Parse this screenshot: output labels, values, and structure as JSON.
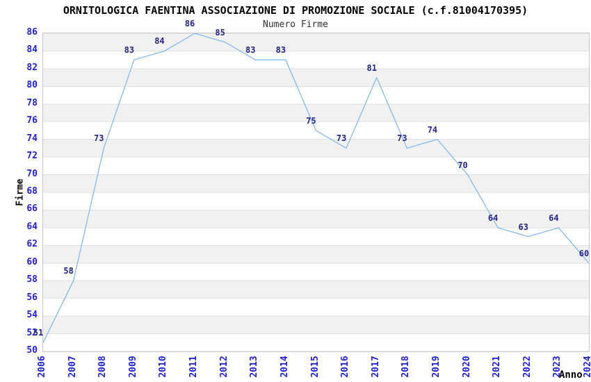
{
  "chart_data": {
    "type": "line",
    "title": "ORNITOLOGICA FAENTINA ASSOCIAZIONE DI PROMOZIONE SOCIALE (c.f.81004170395)",
    "subtitle": "Numero Firme",
    "xlabel": "Anno",
    "ylabel": "Firme",
    "categories": [
      "2006",
      "2007",
      "2008",
      "2009",
      "2010",
      "2011",
      "2012",
      "2013",
      "2014",
      "2015",
      "2016",
      "2017",
      "2018",
      "2019",
      "2020",
      "2021",
      "2022",
      "2023",
      "2024"
    ],
    "series": [
      {
        "name": "Numero Firme",
        "values": [
          51,
          58,
          73,
          83,
          84,
          86,
          85,
          83,
          83,
          75,
          73,
          81,
          73,
          74,
          70,
          64,
          63,
          64,
          60
        ]
      }
    ],
    "ylim": [
      50,
      86
    ],
    "ytick_step": 2,
    "grid": "horizontal-only",
    "band_fill_pattern": "alternating 2-unit horizontal bands, gray on 52-54, 56-58, ... 84-86",
    "legend": false,
    "point_labels": true,
    "colors": {
      "line": "#86b9ec",
      "axis_tick_labels": "#2121cf",
      "point_labels": "#24248a",
      "band_fill": "#f1f1f1",
      "gridline": "#e0e0e0",
      "plot_border": "#c6c6c6",
      "title": "#000000",
      "subtitle": "#333333",
      "axis_titles": "#000000"
    }
  }
}
